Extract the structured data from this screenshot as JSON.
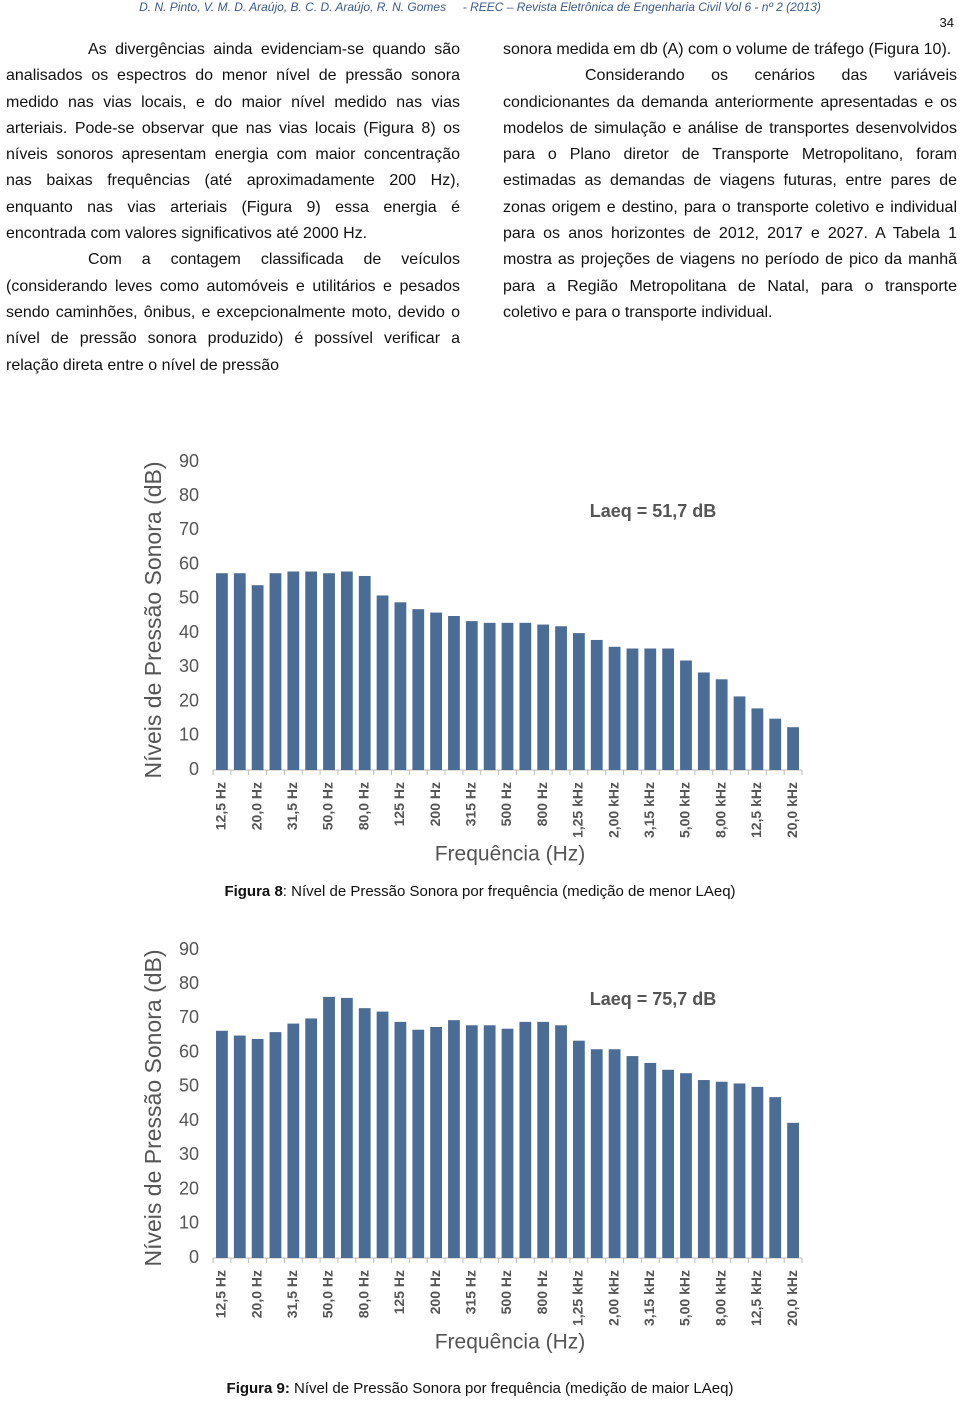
{
  "header": {
    "authors": "D. N. Pinto,  V. M. D. Araújo,  B. C. D. Araújo,  R. N. Gomes",
    "journal": "-  REEC – Revista Eletrônica de Engenharia Civil Vol 6 - nº 2 (2013)",
    "page_number": "34"
  },
  "left_column": [
    "As divergências ainda evidenciam-se quando são analisados os espectros do menor nível de pressão sonora medido nas vias locais, e do maior nível medido nas vias arteriais. Pode-se observar que nas vias locais (Figura 8) os níveis sonoros apresentam energia com maior concentração nas baixas frequências (até aproximadamente 200 Hz), enquanto nas vias arteriais (Figura 9) essa energia é encontrada com valores significativos até 2000 Hz.",
    "Com a contagem classificada de veículos (considerando leves como automóveis e utilitários e pesados sendo caminhões, ônibus, e excepcionalmente moto, devido o nível de pressão sonora produzido) é possível verificar a relação direta entre o nível de pressão"
  ],
  "right_column": [
    "sonora medida em db (A) com o volume de tráfego (Figura 10).",
    "Considerando os cenários das variáveis condicionantes da demanda anteriormente apresentadas e os modelos de simulação e análise de transportes desenvolvidos para o Plano diretor de Transporte Metropolitano, foram estimadas as demandas de viagens futuras, entre pares de zonas origem e destino, para o transporte coletivo e individual para os anos horizontes de 2012, 2017 e 2027. A Tabela 1 mostra as projeções de viagens no período de pico da manhã para a Região Metropolitana de Natal, para o transporte coletivo e para o transporte individual."
  ],
  "captions": [
    {
      "label": "Figura 8",
      "text": ": Nível de Pressão Sonora por frequência (medição de menor LAeq)"
    },
    {
      "label": "Figura 9:",
      "text": " Nível de Pressão Sonora por frequência (medição de maior LAeq)"
    }
  ],
  "chart_data": [
    {
      "type": "bar",
      "ylabel": "Níveis de Pressão Sonora (dB)",
      "xlabel": "Frequência (Hz)",
      "annotation": "Laeq = 51,7 dB",
      "color": "#4b6c94",
      "categories": [
        "12,5 Hz",
        null,
        "20,0 Hz",
        null,
        "31,5 Hz",
        null,
        "50,0 Hz",
        null,
        "80,0 Hz",
        null,
        "125 Hz",
        null,
        "200 Hz",
        null,
        "315 Hz",
        null,
        "500 Hz",
        null,
        "800 Hz",
        null,
        "1,25 kHz",
        null,
        "2,00 kHz",
        null,
        "3,15 kHz",
        null,
        "5,00 kHz",
        null,
        "8,00 kHz",
        null,
        "12,5 kHz",
        null,
        "20,0 kHz"
      ],
      "values": [
        57.5,
        57.5,
        54,
        57.5,
        58,
        58,
        57.5,
        58,
        56.7,
        51,
        49,
        47,
        46,
        45,
        43.5,
        43,
        43,
        43,
        42.5,
        42,
        40,
        38,
        36,
        35.5,
        35.5,
        35.5,
        32,
        28.5,
        26.5,
        21.5,
        18,
        15,
        12.5
      ],
      "ylim": [
        0,
        90
      ],
      "yticks": [
        0,
        10,
        20,
        30,
        40,
        50,
        60,
        70,
        80,
        90
      ]
    },
    {
      "type": "bar",
      "ylabel": "Níveis de Pressão Sonora (dB)",
      "xlabel": "Frequência (Hz)",
      "annotation": "Laeq = 75,7 dB",
      "color": "#4b6c94",
      "categories": [
        "12,5 Hz",
        null,
        "20,0 Hz",
        null,
        "31,5 Hz",
        null,
        "50,0 Hz",
        null,
        "80,0 Hz",
        null,
        "125 Hz",
        null,
        "200 Hz",
        null,
        "315 Hz",
        null,
        "500 Hz",
        null,
        "800 Hz",
        null,
        "1,25 kHz",
        null,
        "2,00 kHz",
        null,
        "3,15 kHz",
        null,
        "5,00 kHz",
        null,
        "8,00 kHz",
        null,
        "12,5 kHz",
        null,
        "20,0 kHz"
      ],
      "values": [
        66.4,
        65,
        64,
        66,
        68.5,
        70,
        76.3,
        76,
        73,
        72,
        69,
        66.7,
        67.5,
        69.5,
        68,
        68,
        67,
        69,
        69,
        68,
        63.5,
        61,
        61,
        59,
        57,
        55,
        54,
        52,
        51.5,
        51,
        50,
        47,
        39.5
      ],
      "ylim": [
        0,
        90
      ],
      "yticks": [
        0,
        10,
        20,
        30,
        40,
        50,
        60,
        70,
        80,
        90
      ]
    }
  ]
}
